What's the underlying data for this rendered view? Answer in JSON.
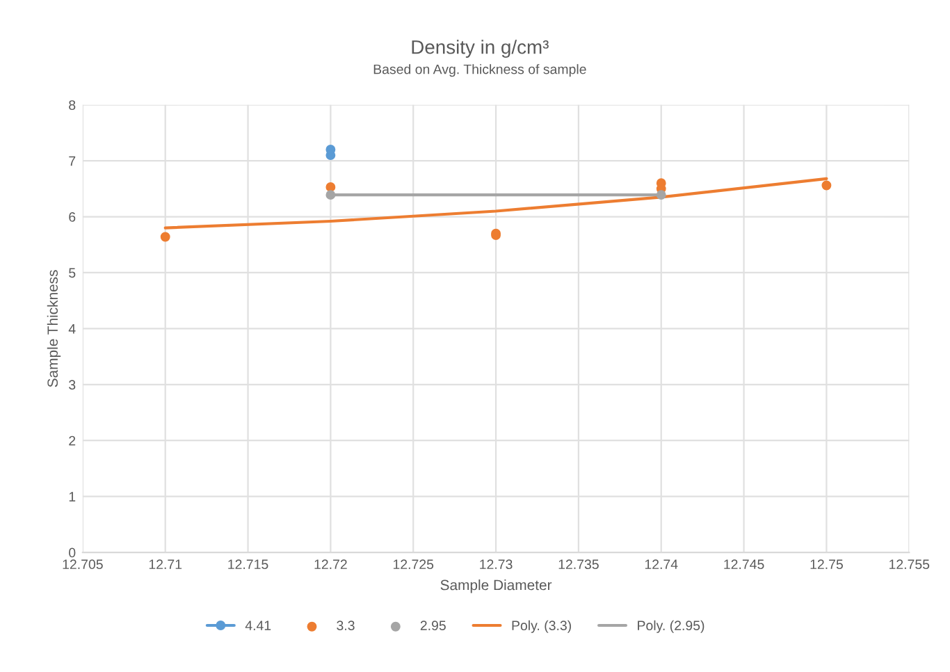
{
  "chart_data": {
    "type": "scatter",
    "title": "Density in g/cm³",
    "subtitle": "Based on Avg. Thickness of sample",
    "xlabel": "Sample Diameter",
    "ylabel": "Sample Thickness",
    "xlim": [
      12.705,
      12.755
    ],
    "xticks": [
      12.705,
      12.71,
      12.715,
      12.72,
      12.725,
      12.73,
      12.735,
      12.74,
      12.745,
      12.75,
      12.755
    ],
    "ylim": [
      0,
      8
    ],
    "yticks": [
      0,
      1,
      2,
      3,
      4,
      5,
      6,
      7,
      8
    ],
    "grid": true,
    "legend": "bottom",
    "marker": "circle",
    "series": [
      {
        "name": "4.41",
        "line_style": "solid",
        "color": "#5b9bd5",
        "x": [
          12.72,
          12.72
        ],
        "values": [
          7.2,
          7.1
        ]
      },
      {
        "name": "3.3",
        "color": "#ed7d31",
        "x": [
          12.71,
          12.72,
          12.73,
          12.73,
          12.74,
          12.74,
          12.75
        ],
        "values": [
          5.64,
          6.53,
          5.67,
          5.7,
          6.6,
          6.5,
          6.56
        ]
      },
      {
        "name": "2.95",
        "color": "#a5a5a5",
        "x": [
          12.72,
          12.74
        ],
        "values": [
          6.39,
          6.39
        ]
      },
      {
        "name": "Poly. (3.3)",
        "type": "line",
        "marker": "none",
        "color": "#ed7d31",
        "x": [
          12.71,
          12.72,
          12.73,
          12.74,
          12.75
        ],
        "values": [
          5.8,
          5.92,
          6.1,
          6.35,
          6.68
        ]
      },
      {
        "name": "Poly. (2.95)",
        "type": "line",
        "marker": "none",
        "color": "#a5a5a5",
        "x": [
          12.72,
          12.74
        ],
        "values": [
          6.39,
          6.39
        ]
      }
    ]
  }
}
